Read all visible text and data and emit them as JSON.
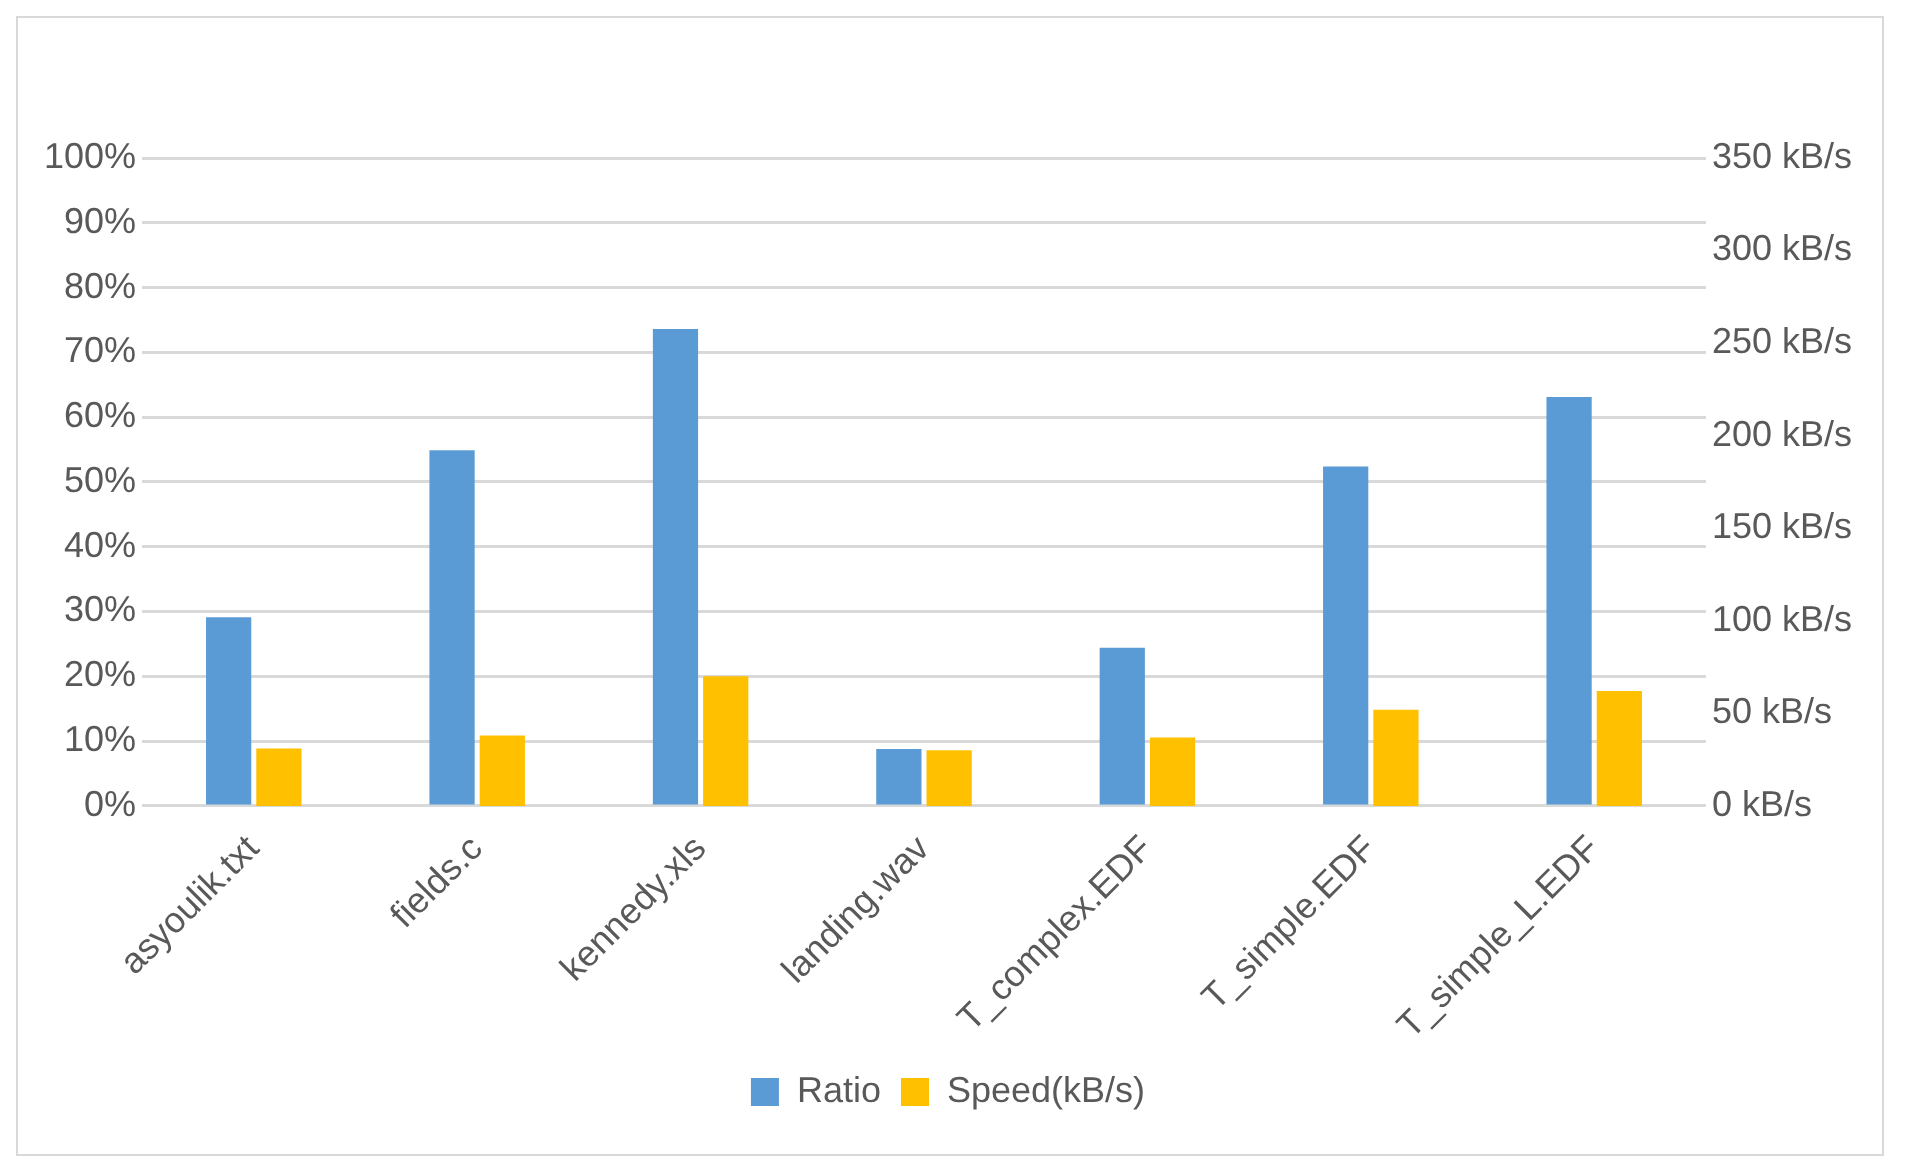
{
  "chart_data": {
    "type": "bar",
    "categories": [
      "asyoulik.txt",
      "fields.c",
      "kennedy.xls",
      "landing.wav",
      "T_complex.EDF",
      "T_simple.EDF",
      "T_simple_L.EDF"
    ],
    "series": [
      {
        "name": "Ratio",
        "color": "#5b9bd5",
        "values": [
          29.1,
          54.9,
          73.6,
          8.8,
          24.4,
          52.4,
          63.1
        ]
      },
      {
        "name": "Speed(kB/s)",
        "color": "#ffc000",
        "axis": "y2",
        "values": [
          31,
          38,
          70,
          30,
          37,
          52,
          62
        ]
      }
    ],
    "ylim": [
      0,
      100
    ],
    "yticks": [
      {
        "value": 0,
        "label": "0%"
      },
      {
        "value": 10,
        "label": "10%"
      },
      {
        "value": 20,
        "label": "20%"
      },
      {
        "value": 30,
        "label": "30%"
      },
      {
        "value": 40,
        "label": "40%"
      },
      {
        "value": 50,
        "label": "50%"
      },
      {
        "value": 60,
        "label": "60%"
      },
      {
        "value": 70,
        "label": "70%"
      },
      {
        "value": 80,
        "label": "80%"
      },
      {
        "value": 90,
        "label": "90%"
      },
      {
        "value": 100,
        "label": "100%"
      }
    ],
    "y2lim": [
      0,
      350
    ],
    "y2ticks": [
      {
        "value": 0,
        "label": "0 kB/s"
      },
      {
        "value": 50,
        "label": "50 kB/s"
      },
      {
        "value": 100,
        "label": "100 kB/s"
      },
      {
        "value": 150,
        "label": "150 kB/s"
      },
      {
        "value": 200,
        "label": "200 kB/s"
      },
      {
        "value": 250,
        "label": "250 kB/s"
      },
      {
        "value": 300,
        "label": "300 kB/s"
      },
      {
        "value": 350,
        "label": "350 kB/s"
      }
    ],
    "grid": "y",
    "legend": "bottom"
  }
}
